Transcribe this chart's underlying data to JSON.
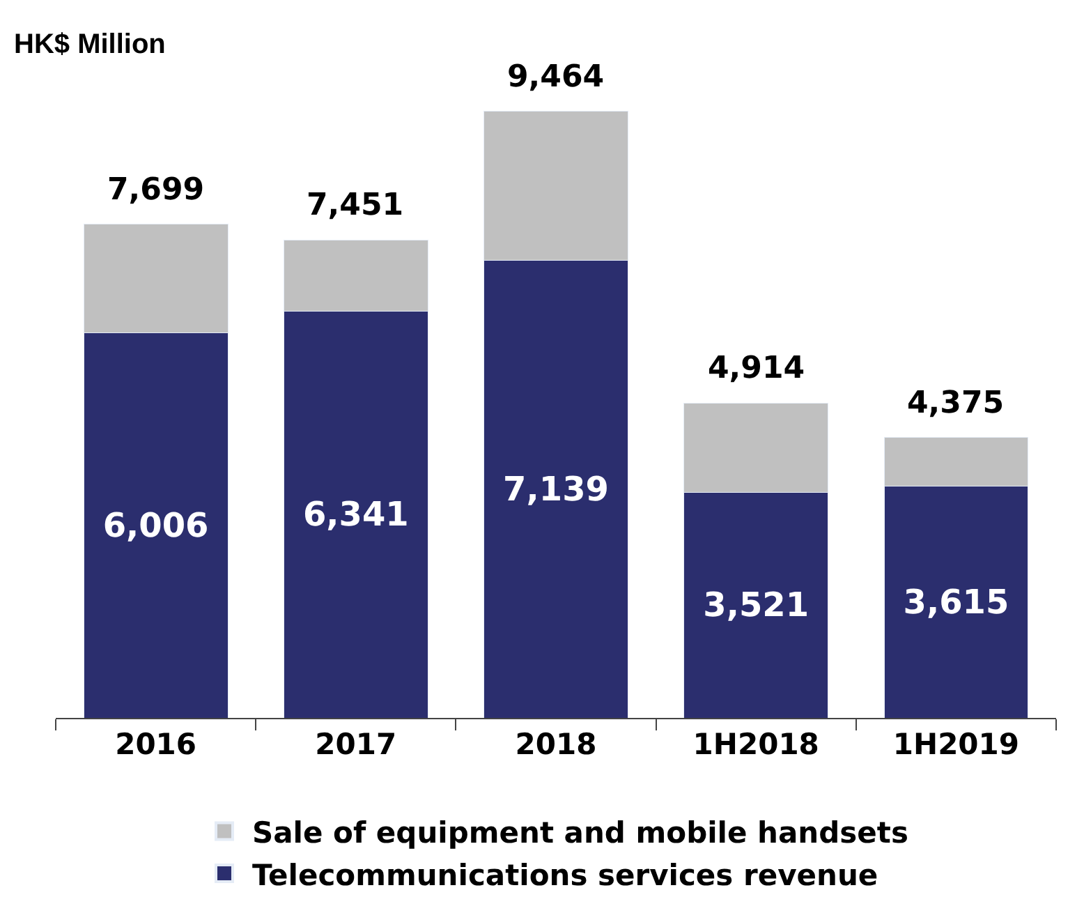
{
  "chart_data": {
    "type": "bar",
    "stacked": true,
    "ylabel": "HK$ Million",
    "categories": [
      "2016",
      "2017",
      "2018",
      "1H2018",
      "1H2019"
    ],
    "series": [
      {
        "name": "Telecommunications services revenue",
        "color": "#2b2e6e",
        "values": [
          6006,
          6341,
          7139,
          3521,
          3615
        ],
        "value_labels": [
          "6,006",
          "6,341",
          "7,139",
          "3,521",
          "3,615"
        ]
      },
      {
        "name": "Sale of equipment and mobile handsets",
        "color": "#c0c0c0",
        "values": [
          1693,
          1110,
          2325,
          1393,
          760
        ]
      }
    ],
    "totals": [
      "7,699",
      "7,451",
      "9,464",
      "4,914",
      "4,375"
    ],
    "legend": "bottom",
    "tick_labels": "x"
  }
}
